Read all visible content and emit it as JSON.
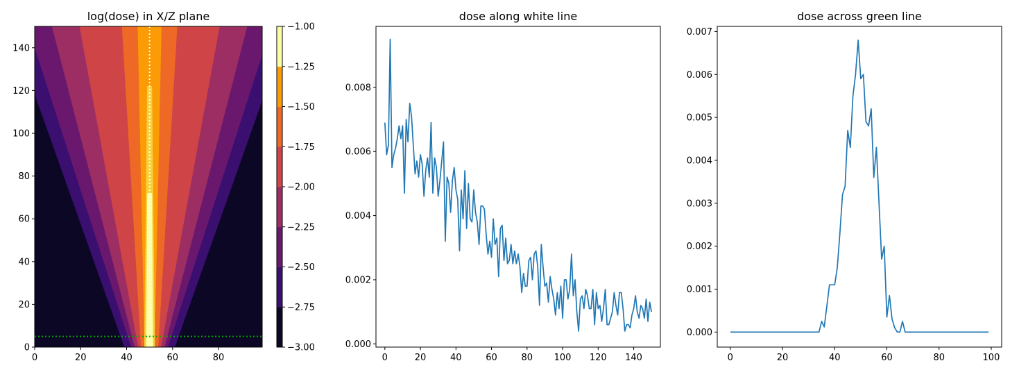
{
  "figure": {
    "background": "#ffffff"
  },
  "chart_data": [
    {
      "type": "heatmap",
      "title": "log(dose) in X/Z plane",
      "xlim": [
        0,
        99
      ],
      "ylim": [
        0,
        150
      ],
      "x_ticks": [
        "0",
        "20",
        "40",
        "60",
        "80"
      ],
      "x_tick_values": [
        0,
        20,
        40,
        60,
        80
      ],
      "y_ticks": [
        "0",
        "20",
        "40",
        "60",
        "80",
        "100",
        "120",
        "140"
      ],
      "y_tick_values": [
        0,
        20,
        40,
        60,
        80,
        100,
        120,
        140
      ],
      "colorbar": {
        "levels": [
          -3.0,
          -2.75,
          -2.5,
          -2.25,
          -2.0,
          -1.75,
          -1.5,
          -1.25,
          -1.0
        ],
        "tick_labels": [
          "−3.00",
          "−2.75",
          "−2.50",
          "−2.25",
          "−2.00",
          "−1.75",
          "−1.50",
          "−1.25",
          "−1.00"
        ],
        "colors": [
          "#0b0724",
          "#3b0f70",
          "#6a176e",
          "#9c2e63",
          "#cf4446",
          "#ed6925",
          "#fb9b06",
          "#f7d13d",
          "#fcffa4"
        ]
      },
      "beam": {
        "center_x": 50,
        "half_width_low_levels": [
          11,
          8,
          6.5,
          5,
          3.8,
          2.2
        ]
      },
      "overlays": [
        {
          "name": "white line",
          "orientation": "vertical",
          "x": 50,
          "color": "#ffffff",
          "style": "dotted"
        },
        {
          "name": "green line",
          "orientation": "horizontal",
          "y": 5,
          "color": "#00aa00",
          "style": "dotted"
        }
      ]
    },
    {
      "type": "line",
      "title": "dose along white line",
      "xlim": [
        -5,
        155
      ],
      "ylim": [
        -0.0001,
        0.0099
      ],
      "x_ticks": [
        "0",
        "20",
        "40",
        "60",
        "80",
        "100",
        "120",
        "140"
      ],
      "x_tick_values": [
        0,
        20,
        40,
        60,
        80,
        100,
        120,
        140
      ],
      "y_ticks": [
        "0.000",
        "0.002",
        "0.004",
        "0.006",
        "0.008"
      ],
      "y_tick_values": [
        0.0,
        0.002,
        0.004,
        0.006,
        0.008
      ],
      "color": "#1f77b4",
      "x_start": 0,
      "values": [
        0.0069,
        0.0059,
        0.0062,
        0.0095,
        0.0055,
        0.0059,
        0.0061,
        0.0064,
        0.0068,
        0.0064,
        0.0068,
        0.0047,
        0.007,
        0.0063,
        0.0075,
        0.0071,
        0.0062,
        0.0053,
        0.0057,
        0.0052,
        0.0059,
        0.0056,
        0.0046,
        0.0054,
        0.0058,
        0.0052,
        0.0069,
        0.0047,
        0.0058,
        0.0055,
        0.0046,
        0.0051,
        0.0057,
        0.0063,
        0.0032,
        0.0052,
        0.005,
        0.0041,
        0.0051,
        0.0055,
        0.0048,
        0.0045,
        0.0029,
        0.0048,
        0.0039,
        0.0054,
        0.0036,
        0.005,
        0.0039,
        0.0038,
        0.0048,
        0.0041,
        0.0038,
        0.0031,
        0.0043,
        0.0043,
        0.0042,
        0.0034,
        0.0028,
        0.0032,
        0.0027,
        0.0039,
        0.0031,
        0.0033,
        0.0021,
        0.0036,
        0.0037,
        0.0026,
        0.0033,
        0.0025,
        0.0026,
        0.0031,
        0.0025,
        0.0029,
        0.0025,
        0.0028,
        0.0024,
        0.0016,
        0.0022,
        0.0018,
        0.0018,
        0.0026,
        0.0027,
        0.002,
        0.0028,
        0.0029,
        0.0024,
        0.0012,
        0.0031,
        0.0024,
        0.0018,
        0.0019,
        0.0013,
        0.0021,
        0.0017,
        0.0014,
        0.0009,
        0.0016,
        0.0011,
        0.0018,
        0.0008,
        0.002,
        0.002,
        0.0014,
        0.0017,
        0.0028,
        0.0015,
        0.002,
        0.001,
        0.0004,
        0.0014,
        0.0015,
        0.0011,
        0.0017,
        0.0015,
        0.0011,
        0.0011,
        0.0017,
        0.0006,
        0.0016,
        0.0011,
        0.0012,
        0.0007,
        0.0011,
        0.0017,
        0.0006,
        0.0006,
        0.0008,
        0.001,
        0.0016,
        0.0012,
        0.0009,
        0.0016,
        0.0016,
        0.0011,
        0.0004,
        0.0006,
        0.0006,
        0.0005,
        0.0009,
        0.0011,
        0.0015,
        0.001,
        0.0008,
        0.0012,
        0.0011,
        0.0008,
        0.0014,
        0.0007,
        0.0013,
        0.001
      ]
    },
    {
      "type": "line",
      "title": "dose across green line",
      "xlim": [
        -5,
        104
      ],
      "ylim": [
        -0.00035,
        0.00712
      ],
      "x_ticks": [
        "0",
        "20",
        "40",
        "60",
        "80",
        "100"
      ],
      "x_tick_values": [
        0,
        20,
        40,
        60,
        80,
        100
      ],
      "y_ticks": [
        "0.000",
        "0.001",
        "0.002",
        "0.003",
        "0.004",
        "0.005",
        "0.006",
        "0.007"
      ],
      "y_tick_values": [
        0.0,
        0.001,
        0.002,
        0.003,
        0.004,
        0.005,
        0.006,
        0.007
      ],
      "color": "#1f77b4",
      "x_start": 0,
      "values": [
        0,
        0,
        0,
        0,
        0,
        0,
        0,
        0,
        0,
        0,
        0,
        0,
        0,
        0,
        0,
        0,
        0,
        0,
        0,
        0,
        0,
        0,
        0,
        0,
        0,
        0,
        0,
        0,
        0,
        0,
        0,
        0,
        0,
        0,
        0,
        0.00025,
        0.00012,
        0.0006,
        0.0011,
        0.0011,
        0.0011,
        0.0015,
        0.0023,
        0.0032,
        0.0034,
        0.0047,
        0.0043,
        0.0055,
        0.006,
        0.0068,
        0.0059,
        0.006,
        0.0049,
        0.0048,
        0.0052,
        0.0036,
        0.0043,
        0.003,
        0.0017,
        0.002,
        0.00035,
        0.00085,
        0.0003,
        0.0001,
        0,
        0,
        0.00025,
        0,
        0,
        0,
        0,
        0,
        0,
        0,
        0,
        0,
        0,
        0,
        0,
        0,
        0,
        0,
        0,
        0,
        0,
        0,
        0,
        0,
        0,
        0,
        0,
        0,
        0,
        0,
        0,
        0,
        0,
        0,
        0,
        0
      ]
    }
  ]
}
